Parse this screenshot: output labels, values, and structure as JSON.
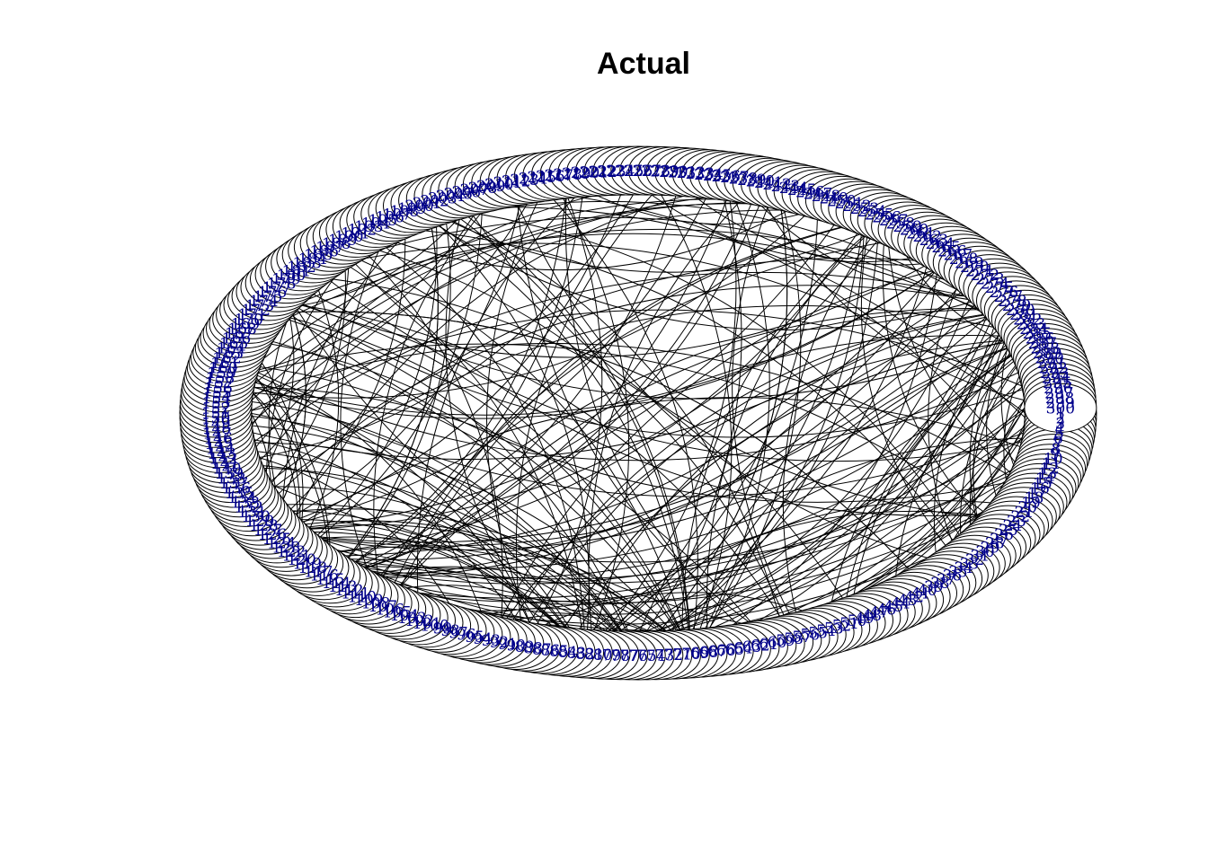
{
  "title": "Actual",
  "graph": {
    "layout": "circle",
    "node_count": 300,
    "edge_count": 360,
    "node_fill": "#ffffff",
    "node_border": "#000000",
    "label_color": "#00008B",
    "edge_color": "#000000",
    "directed": true,
    "curved_edges": true
  }
}
